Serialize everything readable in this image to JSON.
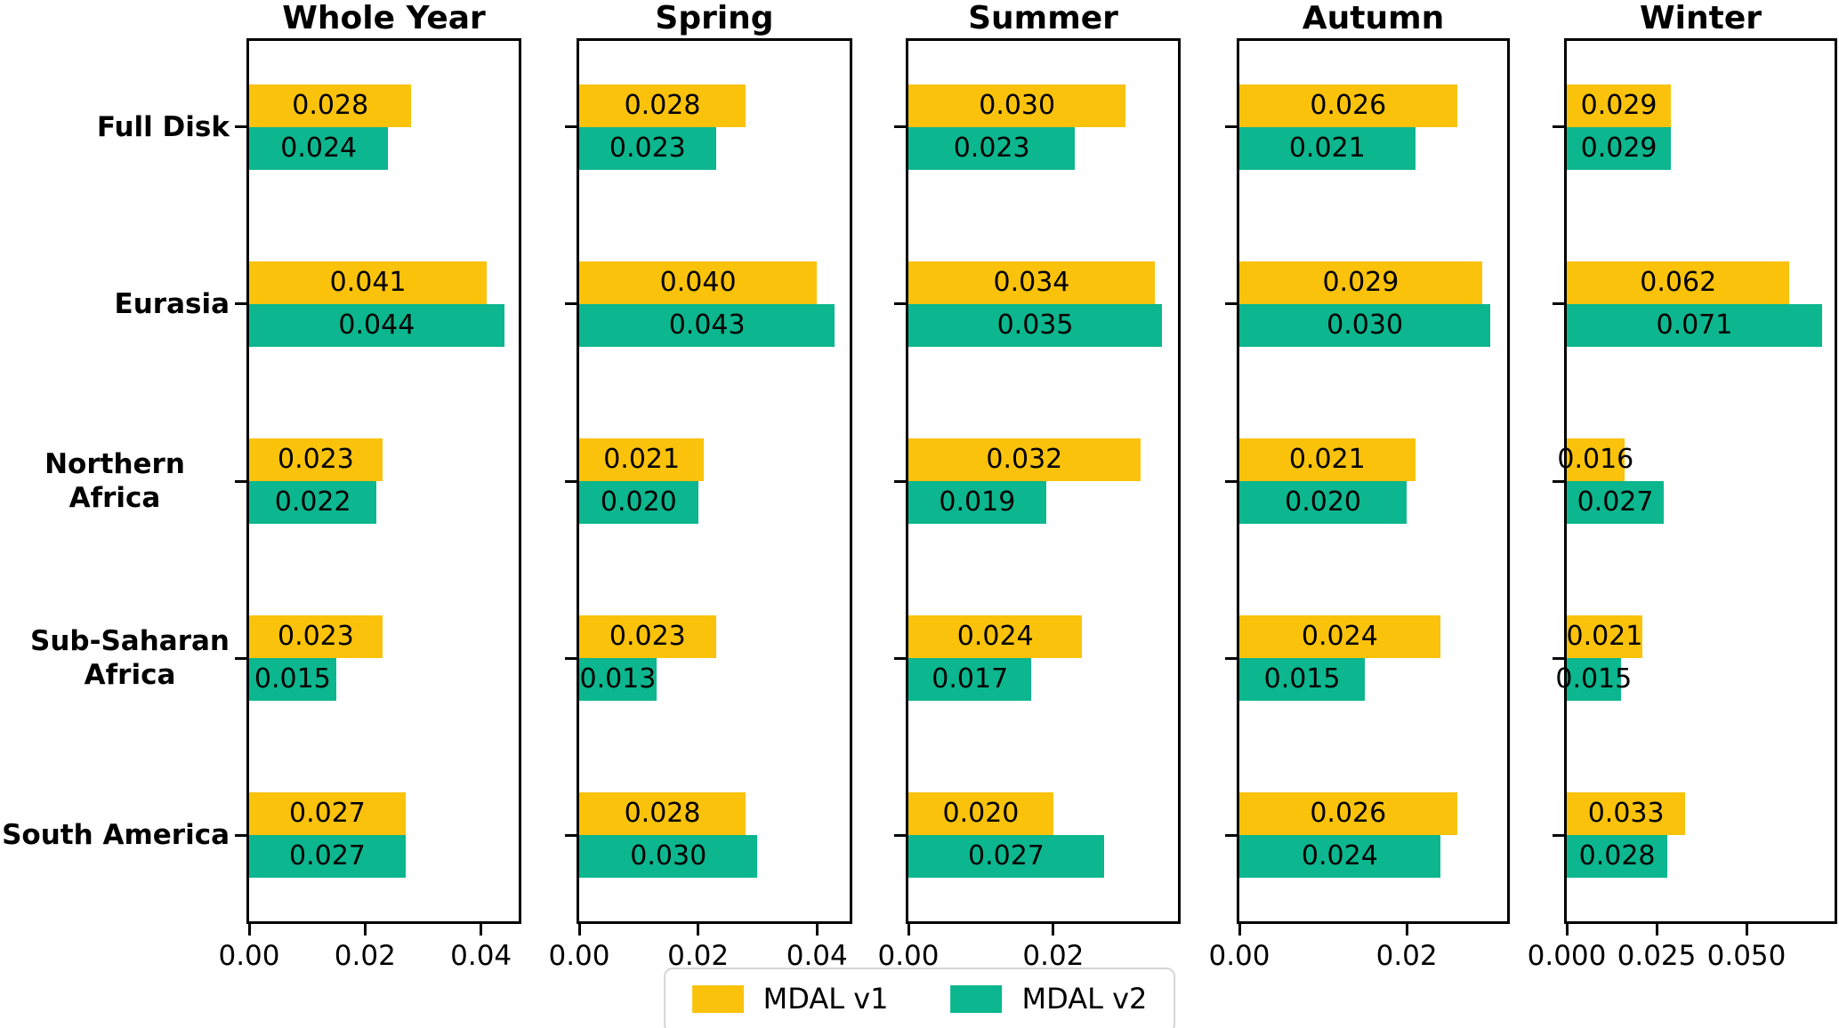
{
  "chart_data": {
    "type": "bar",
    "orientation": "horizontal",
    "title": "",
    "grid": false,
    "legend_position": "bottom-center",
    "bar_label_decimals": 3,
    "categories": [
      "Full Disk",
      "Eurasia",
      "Northern Africa",
      "Sub-Saharan Africa",
      "South America"
    ],
    "categories_lines": [
      [
        "Full Disk"
      ],
      [
        "Eurasia"
      ],
      [
        "Northern Africa"
      ],
      [
        "Sub-Saharan",
        "Africa"
      ],
      [
        "South America"
      ]
    ],
    "series": [
      {
        "name": "MDAL v1",
        "color": "#FAC20A"
      },
      {
        "name": "MDAL v2",
        "color": "#0CB68E"
      }
    ],
    "panels": [
      {
        "title": "Whole Year",
        "xlim": [
          0,
          0.0465
        ],
        "xticks": [
          0,
          0.02,
          0.04
        ],
        "tick_decimals": 2,
        "v1": [
          0.028,
          0.041,
          0.023,
          0.023,
          0.027
        ],
        "v2": [
          0.024,
          0.044,
          0.022,
          0.015,
          0.027
        ]
      },
      {
        "title": "Spring",
        "xlim": [
          0,
          0.0455
        ],
        "xticks": [
          0,
          0.02,
          0.04
        ],
        "tick_decimals": 2,
        "v1": [
          0.028,
          0.04,
          0.021,
          0.023,
          0.028
        ],
        "v2": [
          0.023,
          0.043,
          0.02,
          0.013,
          0.03
        ]
      },
      {
        "title": "Summer",
        "xlim": [
          0,
          0.0372
        ],
        "xticks": [
          0,
          0.02
        ],
        "tick_decimals": 2,
        "v1": [
          0.03,
          0.034,
          0.032,
          0.024,
          0.02
        ],
        "v2": [
          0.023,
          0.035,
          0.019,
          0.017,
          0.027
        ]
      },
      {
        "title": "Autumn",
        "xlim": [
          0,
          0.032
        ],
        "xticks": [
          0,
          0.02
        ],
        "tick_decimals": 2,
        "v1": [
          0.026,
          0.029,
          0.021,
          0.024,
          0.026
        ],
        "v2": [
          0.021,
          0.03,
          0.02,
          0.015,
          0.024
        ]
      },
      {
        "title": "Winter",
        "xlim": [
          0,
          0.0745
        ],
        "xticks": [
          0,
          0.025,
          0.05
        ],
        "tick_decimals": 3,
        "v1": [
          0.029,
          0.062,
          0.016,
          0.021,
          0.033
        ],
        "v2": [
          0.029,
          0.071,
          0.027,
          0.015,
          0.028
        ]
      }
    ]
  },
  "legend": {
    "items": [
      {
        "label": "MDAL v1"
      },
      {
        "label": "MDAL v2"
      }
    ]
  }
}
